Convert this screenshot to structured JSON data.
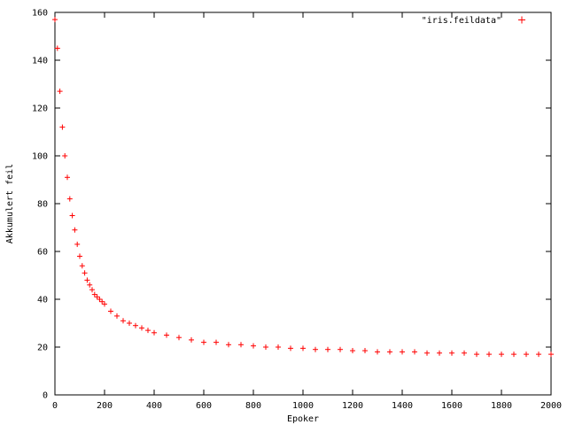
{
  "chart_data": {
    "type": "scatter",
    "title": "",
    "xlabel": "Epoker",
    "ylabel": "Akkumulert feil",
    "xlim": [
      0,
      2000
    ],
    "ylim": [
      0,
      160
    ],
    "xticks": [
      0,
      200,
      400,
      600,
      800,
      1000,
      1200,
      1400,
      1600,
      1800,
      2000
    ],
    "yticks": [
      0,
      20,
      40,
      60,
      80,
      100,
      120,
      140,
      160
    ],
    "grid": false,
    "legend_position": "top-right",
    "marker": "plus",
    "color": "#ff0000",
    "series": [
      {
        "name": "\"iris.feildata\"",
        "x": [
          0,
          10,
          20,
          30,
          40,
          50,
          60,
          70,
          80,
          90,
          100,
          110,
          120,
          130,
          140,
          150,
          160,
          170,
          180,
          190,
          200,
          225,
          250,
          275,
          300,
          325,
          350,
          375,
          400,
          450,
          500,
          550,
          600,
          650,
          700,
          750,
          800,
          850,
          900,
          950,
          1000,
          1050,
          1100,
          1150,
          1200,
          1250,
          1300,
          1350,
          1400,
          1450,
          1500,
          1550,
          1600,
          1650,
          1700,
          1750,
          1800,
          1850,
          1900,
          1950,
          2000
        ],
        "y": [
          157,
          145,
          127,
          112,
          100,
          91,
          82,
          75,
          69,
          63,
          58,
          54,
          51,
          48,
          46,
          44,
          42,
          41,
          40,
          39,
          38,
          35,
          33,
          31,
          30,
          29,
          28,
          27,
          26,
          25,
          24,
          23,
          22,
          22,
          21,
          21,
          20.5,
          20,
          20,
          19.5,
          19.5,
          19,
          19,
          19,
          18.5,
          18.5,
          18,
          18,
          18,
          18,
          17.5,
          17.5,
          17.5,
          17.5,
          17,
          17,
          17,
          17,
          17,
          17,
          17
        ]
      }
    ]
  }
}
